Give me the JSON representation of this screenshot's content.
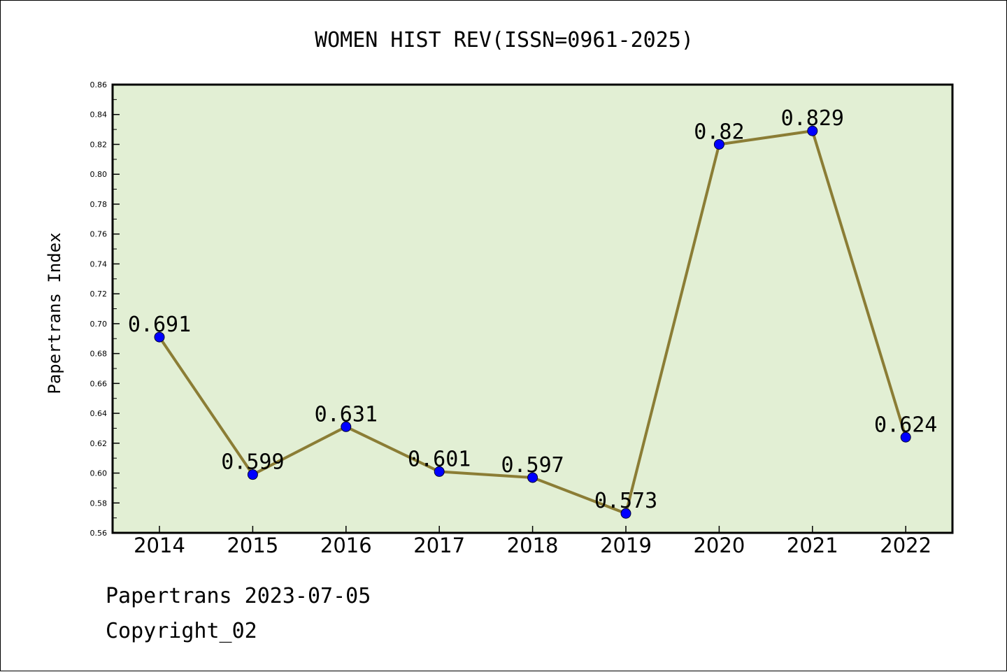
{
  "chart_data": {
    "type": "line",
    "title": "WOMEN HIST REV(ISSN=0961-2025)",
    "xlabel": "",
    "ylabel": "Papertrans Index",
    "categories": [
      "2014",
      "2015",
      "2016",
      "2017",
      "2018",
      "2019",
      "2020",
      "2021",
      "2022"
    ],
    "values": [
      0.691,
      0.599,
      0.631,
      0.601,
      0.597,
      0.573,
      0.82,
      0.829,
      0.624
    ],
    "data_labels": [
      "0.691",
      "0.599",
      "0.631",
      "0.601",
      "0.597",
      "0.573",
      "0.82",
      "0.829",
      "0.624"
    ],
    "ylim": [
      0.56,
      0.86
    ],
    "yticks": [
      "0.56",
      "0.58",
      "0.60",
      "0.62",
      "0.64",
      "0.66",
      "0.68",
      "0.70",
      "0.72",
      "0.74",
      "0.76",
      "0.78",
      "0.80",
      "0.82",
      "0.84",
      "0.86"
    ],
    "grid": false,
    "colors": {
      "plot_background": "#e2efd4",
      "line": "#8b7d35",
      "marker": "#0000ff"
    }
  },
  "footer": {
    "date_line": "Papertrans 2023-07-05",
    "copyright_line": "Copyright_02"
  }
}
